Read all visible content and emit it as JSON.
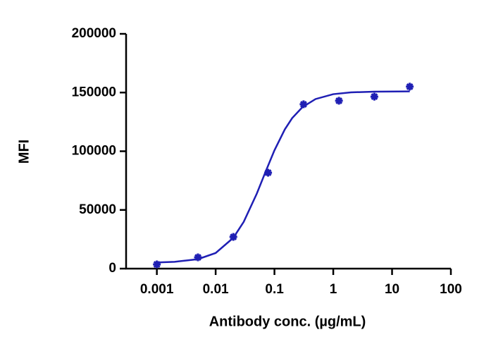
{
  "chart_data": {
    "type": "scatter",
    "x_label": "Antibody conc. (µg/mL)",
    "y_label": "MFI",
    "xscale": "log",
    "xlim": [
      0.0003,
      100
    ],
    "xticks": [
      0.001,
      0.01,
      0.1,
      1,
      10,
      100
    ],
    "ylim": [
      0,
      200000
    ],
    "yticks": [
      0,
      50000,
      100000,
      150000,
      200000
    ],
    "series": [
      {
        "mode": "markers",
        "color": "#1f1fb4",
        "x": [
          0.001,
          0.005,
          0.02,
          0.078,
          0.3125,
          1.25,
          5,
          20
        ],
        "values": [
          3600,
          9600,
          27000,
          81700,
          140000,
          143000,
          146500,
          155000
        ]
      },
      {
        "mode": "line",
        "color": "#1f1fb4",
        "x": [
          0.001,
          0.002,
          0.005,
          0.01,
          0.02,
          0.03,
          0.05,
          0.07,
          0.1,
          0.15,
          0.2,
          0.3,
          0.5,
          1,
          2,
          5,
          20
        ],
        "values": [
          5278,
          5785,
          8048,
          13310,
          26283,
          39845,
          63823,
          82050,
          100800,
          118600,
          128200,
          137600,
          144460,
          148620,
          150150,
          150784,
          150973
        ]
      }
    ]
  }
}
